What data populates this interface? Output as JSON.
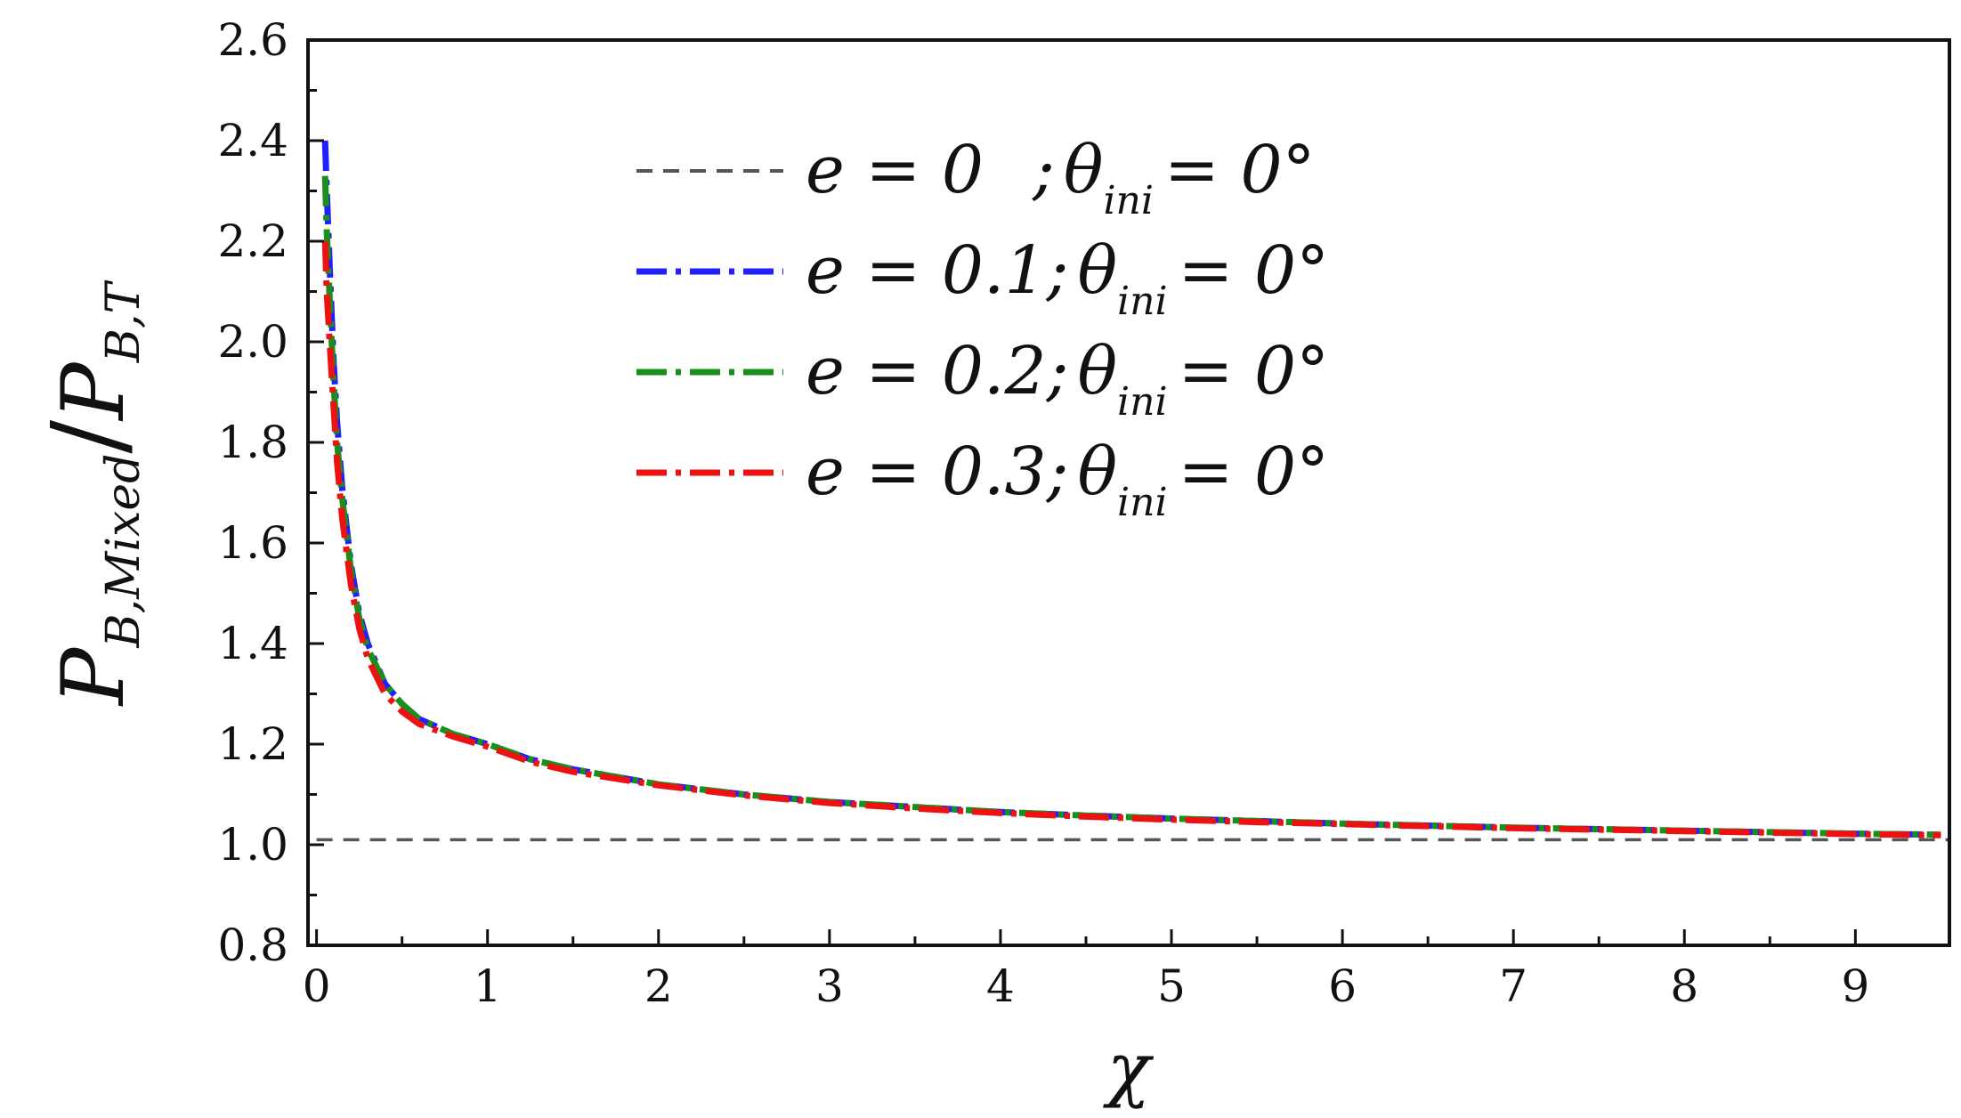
{
  "chart_data": {
    "type": "line",
    "xlabel": "χ",
    "ylabel": {
      "main": "P",
      "sub1": "B,Mixed",
      "slash": "/",
      "sub2": "B,T"
    },
    "xlim": [
      -0.05,
      9.55
    ],
    "ylim": [
      0.8,
      2.6
    ],
    "xticks": [
      0,
      1,
      2,
      3,
      4,
      5,
      6,
      7,
      8,
      9
    ],
    "xtick_labels": [
      "0",
      "1",
      "2",
      "3",
      "4",
      "5",
      "6",
      "7",
      "8",
      "9"
    ],
    "yticks": [
      0.8,
      1.0,
      1.2,
      1.4,
      1.6,
      1.8,
      2.0,
      2.2,
      2.4,
      2.6
    ],
    "ytick_labels": [
      "0.8",
      "1.0",
      "1.2",
      "1.4",
      "1.6",
      "1.8",
      "2.0",
      "2.2",
      "2.4",
      "2.6"
    ],
    "grid": false,
    "legend_position": "top-center",
    "series": [
      {
        "name": "e = 0   ; θini = 0°",
        "legend": {
          "e": "e = 0",
          "theta": "θ",
          "sub": "ini",
          "tail": "= 0°",
          "pad": true
        },
        "color": "#555555",
        "dash": "dashed",
        "x": [
          0,
          9.55
        ],
        "y": [
          1.01,
          1.01
        ]
      },
      {
        "name": "e = 0.1; θini = 0°",
        "legend": {
          "e": "e = 0.1;",
          "theta": "θ",
          "sub": "ini",
          "tail": "= 0°",
          "pad": false
        },
        "color": "#1f1fff",
        "dash": "dashdot",
        "x": [
          0.05,
          0.06,
          0.08,
          0.1,
          0.12,
          0.15,
          0.2,
          0.25,
          0.3,
          0.4,
          0.5,
          0.6,
          0.8,
          1.0,
          1.25,
          1.5,
          2.0,
          2.5,
          3.0,
          3.5,
          4.0,
          4.5,
          5.0,
          5.5,
          6.0,
          6.5,
          7.0,
          7.5,
          8.0,
          8.5,
          9.0,
          9.5
        ],
        "y": [
          2.4,
          2.3,
          2.12,
          1.96,
          1.84,
          1.71,
          1.56,
          1.46,
          1.4,
          1.32,
          1.28,
          1.25,
          1.22,
          1.2,
          1.17,
          1.15,
          1.12,
          1.1,
          1.085,
          1.075,
          1.065,
          1.058,
          1.052,
          1.047,
          1.042,
          1.038,
          1.034,
          1.031,
          1.028,
          1.025,
          1.022,
          1.02
        ]
      },
      {
        "name": "e = 0.2; θini = 0°",
        "legend": {
          "e": "e = 0.2;",
          "theta": "θ",
          "sub": "ini",
          "tail": "= 0°",
          "pad": false
        },
        "color": "#1a8f1a",
        "dash": "dashdot",
        "x": [
          0.05,
          0.06,
          0.08,
          0.1,
          0.12,
          0.15,
          0.2,
          0.25,
          0.3,
          0.4,
          0.5,
          0.6,
          0.8,
          1.0,
          1.25,
          1.5,
          2.0,
          2.5,
          3.0,
          3.5,
          4.0,
          4.5,
          5.0,
          5.5,
          6.0,
          6.5,
          7.0,
          7.5,
          8.0,
          8.5,
          9.0,
          9.5
        ],
        "y": [
          2.33,
          2.22,
          2.06,
          1.92,
          1.8,
          1.69,
          1.55,
          1.45,
          1.39,
          1.32,
          1.28,
          1.25,
          1.22,
          1.2,
          1.17,
          1.15,
          1.12,
          1.1,
          1.085,
          1.075,
          1.065,
          1.058,
          1.052,
          1.047,
          1.042,
          1.038,
          1.034,
          1.031,
          1.028,
          1.025,
          1.022,
          1.02
        ]
      },
      {
        "name": "e = 0.3; θini = 0°",
        "legend": {
          "e": "e = 0.3;",
          "theta": "θ",
          "sub": "ini",
          "tail": "= 0°",
          "pad": false
        },
        "color": "#ee1111",
        "dash": "dashdot",
        "x": [
          0.05,
          0.06,
          0.08,
          0.1,
          0.12,
          0.15,
          0.2,
          0.25,
          0.3,
          0.4,
          0.5,
          0.6,
          0.8,
          1.0,
          1.25,
          1.5,
          2.0,
          2.5,
          3.0,
          3.5,
          4.0,
          4.5,
          5.0,
          5.5,
          6.0,
          6.5,
          7.0,
          7.5,
          8.0,
          8.5,
          9.0,
          9.5
        ],
        "y": [
          2.2,
          2.1,
          1.98,
          1.87,
          1.76,
          1.65,
          1.52,
          1.43,
          1.37,
          1.3,
          1.265,
          1.24,
          1.215,
          1.195,
          1.165,
          1.145,
          1.118,
          1.098,
          1.083,
          1.072,
          1.063,
          1.056,
          1.05,
          1.045,
          1.041,
          1.037,
          1.033,
          1.03,
          1.027,
          1.024,
          1.021,
          1.019
        ]
      }
    ]
  }
}
